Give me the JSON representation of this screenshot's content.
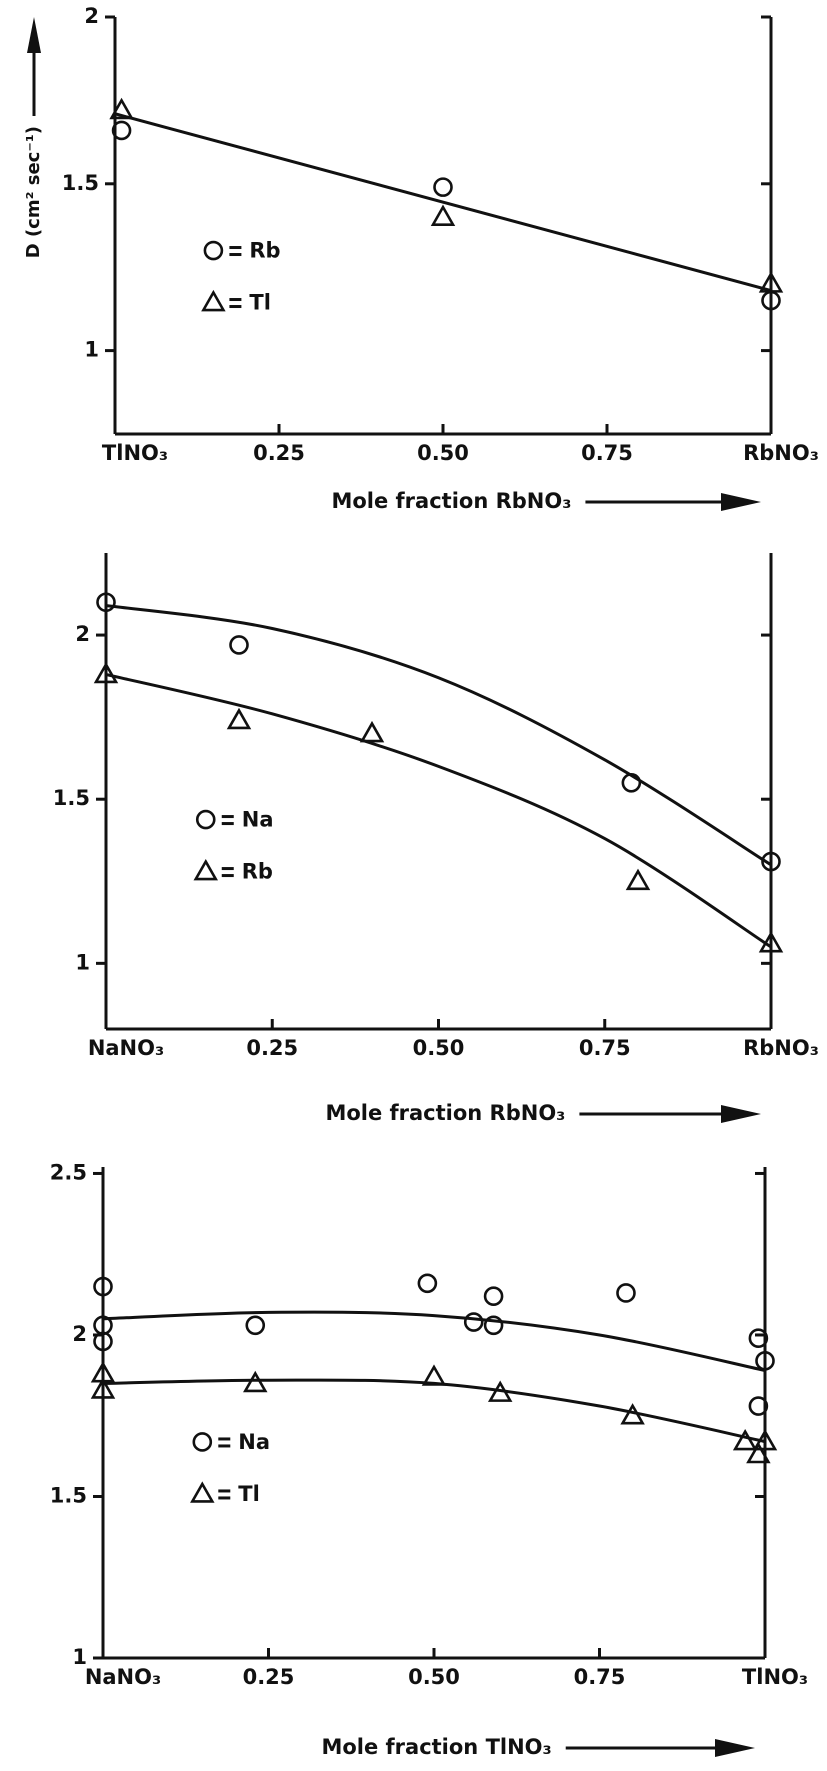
{
  "chart_data": [
    {
      "type": "scatter",
      "y_label": "D (cm² sec⁻¹)",
      "x_label": "Mole fraction RbNO₃",
      "xlim": [
        0,
        1
      ],
      "ylim": [
        0.75,
        2
      ],
      "xticks": [
        {
          "value": 0,
          "label": "TlNO₃"
        },
        0.25,
        {
          "value": 0.5,
          "label": "0.50"
        },
        0.75,
        {
          "value": 1,
          "label": "RbNO₃"
        }
      ],
      "yticks": [
        1,
        1.5,
        2
      ],
      "series": [
        {
          "name": "Rb",
          "marker": "circle",
          "color": "#111",
          "x": [
            0.01,
            0.5,
            1.0
          ],
          "values": [
            1.66,
            1.49,
            1.15
          ]
        },
        {
          "name": "Tl",
          "marker": "triangle",
          "color": "#111",
          "x": [
            0.01,
            0.5,
            1.0
          ],
          "values": [
            1.72,
            1.4,
            1.2
          ]
        }
      ],
      "fit_lines": [
        {
          "x": [
            0,
            1
          ],
          "values": [
            1.71,
            1.18
          ]
        }
      ]
    },
    {
      "type": "scatter",
      "x_label": "Mole fraction RbNO₃",
      "xlim": [
        0,
        1
      ],
      "ylim": [
        0.8,
        2.25
      ],
      "xticks": [
        {
          "value": 0,
          "label": "NaNO₃"
        },
        0.25,
        {
          "value": 0.5,
          "label": "0.50"
        },
        0.75,
        {
          "value": 1,
          "label": "RbNO₃"
        }
      ],
      "yticks": [
        1,
        1.5,
        2
      ],
      "series": [
        {
          "name": "Na",
          "marker": "circle",
          "color": "#111",
          "x": [
            0,
            0.2,
            0.79,
            1.0
          ],
          "values": [
            2.1,
            1.97,
            1.55,
            1.31
          ]
        },
        {
          "name": "Rb",
          "marker": "triangle",
          "color": "#111",
          "x": [
            0,
            0.2,
            0.4,
            0.8,
            1.0
          ],
          "values": [
            1.88,
            1.74,
            1.7,
            1.25,
            1.06
          ]
        }
      ],
      "fit_lines": [
        {
          "x": [
            0,
            0.25,
            0.5,
            0.75,
            1
          ],
          "values": [
            2.09,
            2.02,
            1.87,
            1.62,
            1.3
          ]
        },
        {
          "x": [
            0,
            0.25,
            0.5,
            0.75,
            1
          ],
          "values": [
            1.88,
            1.76,
            1.6,
            1.38,
            1.05
          ]
        }
      ]
    },
    {
      "type": "scatter",
      "x_label": "Mole fraction TlNO₃",
      "xlim": [
        0,
        1
      ],
      "ylim": [
        1,
        2.52
      ],
      "xticks": [
        {
          "value": 0,
          "label": "NaNO₃"
        },
        0.25,
        {
          "value": 0.5,
          "label": "0.50"
        },
        0.75,
        {
          "value": 1,
          "label": "TlNO₃"
        }
      ],
      "yticks": [
        1,
        1.5,
        2,
        2.5
      ],
      "series": [
        {
          "name": "Na",
          "marker": "circle",
          "color": "#111",
          "x": [
            0,
            0,
            0,
            0.23,
            0.49,
            0.56,
            0.59,
            0.59,
            0.79,
            0.99,
            1.0,
            0.99
          ],
          "values": [
            2.15,
            2.03,
            1.98,
            2.03,
            2.16,
            2.04,
            2.03,
            2.12,
            2.13,
            1.99,
            1.92,
            1.78
          ]
        },
        {
          "name": "Tl",
          "marker": "triangle",
          "color": "#111",
          "x": [
            0,
            0,
            0.23,
            0.5,
            0.6,
            0.8,
            0.97,
            0.99,
            1.0
          ],
          "values": [
            1.88,
            1.83,
            1.85,
            1.87,
            1.82,
            1.75,
            1.67,
            1.63,
            1.67
          ]
        }
      ],
      "fit_lines": [
        {
          "x": [
            0,
            0.25,
            0.5,
            0.75,
            1
          ],
          "values": [
            2.05,
            2.07,
            2.06,
            2.0,
            1.89
          ]
        },
        {
          "x": [
            0,
            0.25,
            0.5,
            0.75,
            1
          ],
          "values": [
            1.85,
            1.86,
            1.85,
            1.78,
            1.67
          ]
        }
      ]
    }
  ]
}
